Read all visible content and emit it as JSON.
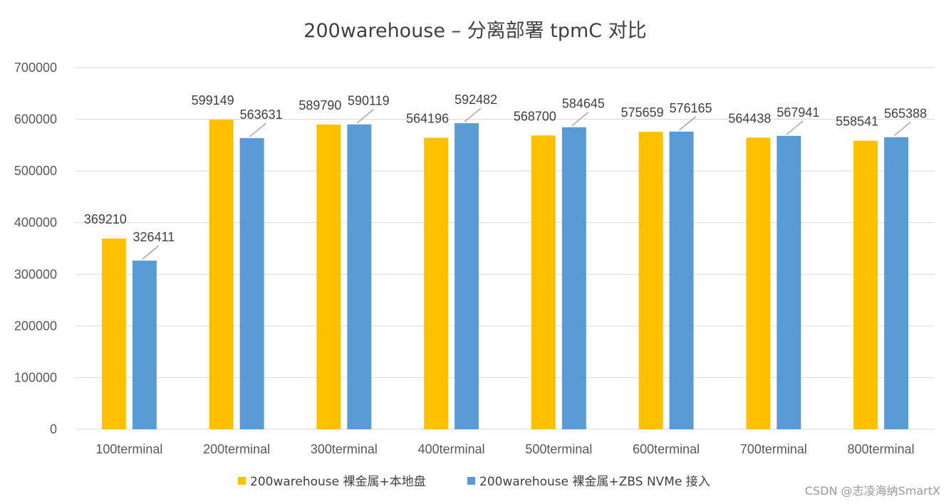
{
  "colors": {
    "series1": "#FFC000",
    "series2": "#5B9BD5",
    "grid": "#D9D9D9",
    "leader": "#A6A6A6"
  },
  "watermark": "CSDN @志凌海纳SmartX",
  "chart_data": {
    "type": "bar",
    "title": "200warehouse – 分离部署 tpmC 对比",
    "xlabel": "",
    "ylabel": "",
    "ylim": [
      0,
      700000
    ],
    "yticks": [
      "0",
      "100000",
      "200000",
      "300000",
      "400000",
      "500000",
      "600000",
      "700000"
    ],
    "grid": true,
    "legend_position": "bottom",
    "categories": [
      "100terminal",
      "200terminal",
      "300terminal",
      "400terminal",
      "500terminal",
      "600terminal",
      "700terminal",
      "800terminal"
    ],
    "series": [
      {
        "name": "200warehouse 裸金属+本地盘",
        "color": "#FFC000",
        "values": [
          369210,
          599149,
          589790,
          564196,
          568700,
          575659,
          564438,
          558541
        ]
      },
      {
        "name": "200warehouse 裸金属+ZBS NVMe 接入",
        "color": "#5B9BD5",
        "values": [
          326411,
          563631,
          590119,
          592482,
          584645,
          576165,
          567941,
          565388
        ]
      }
    ]
  }
}
